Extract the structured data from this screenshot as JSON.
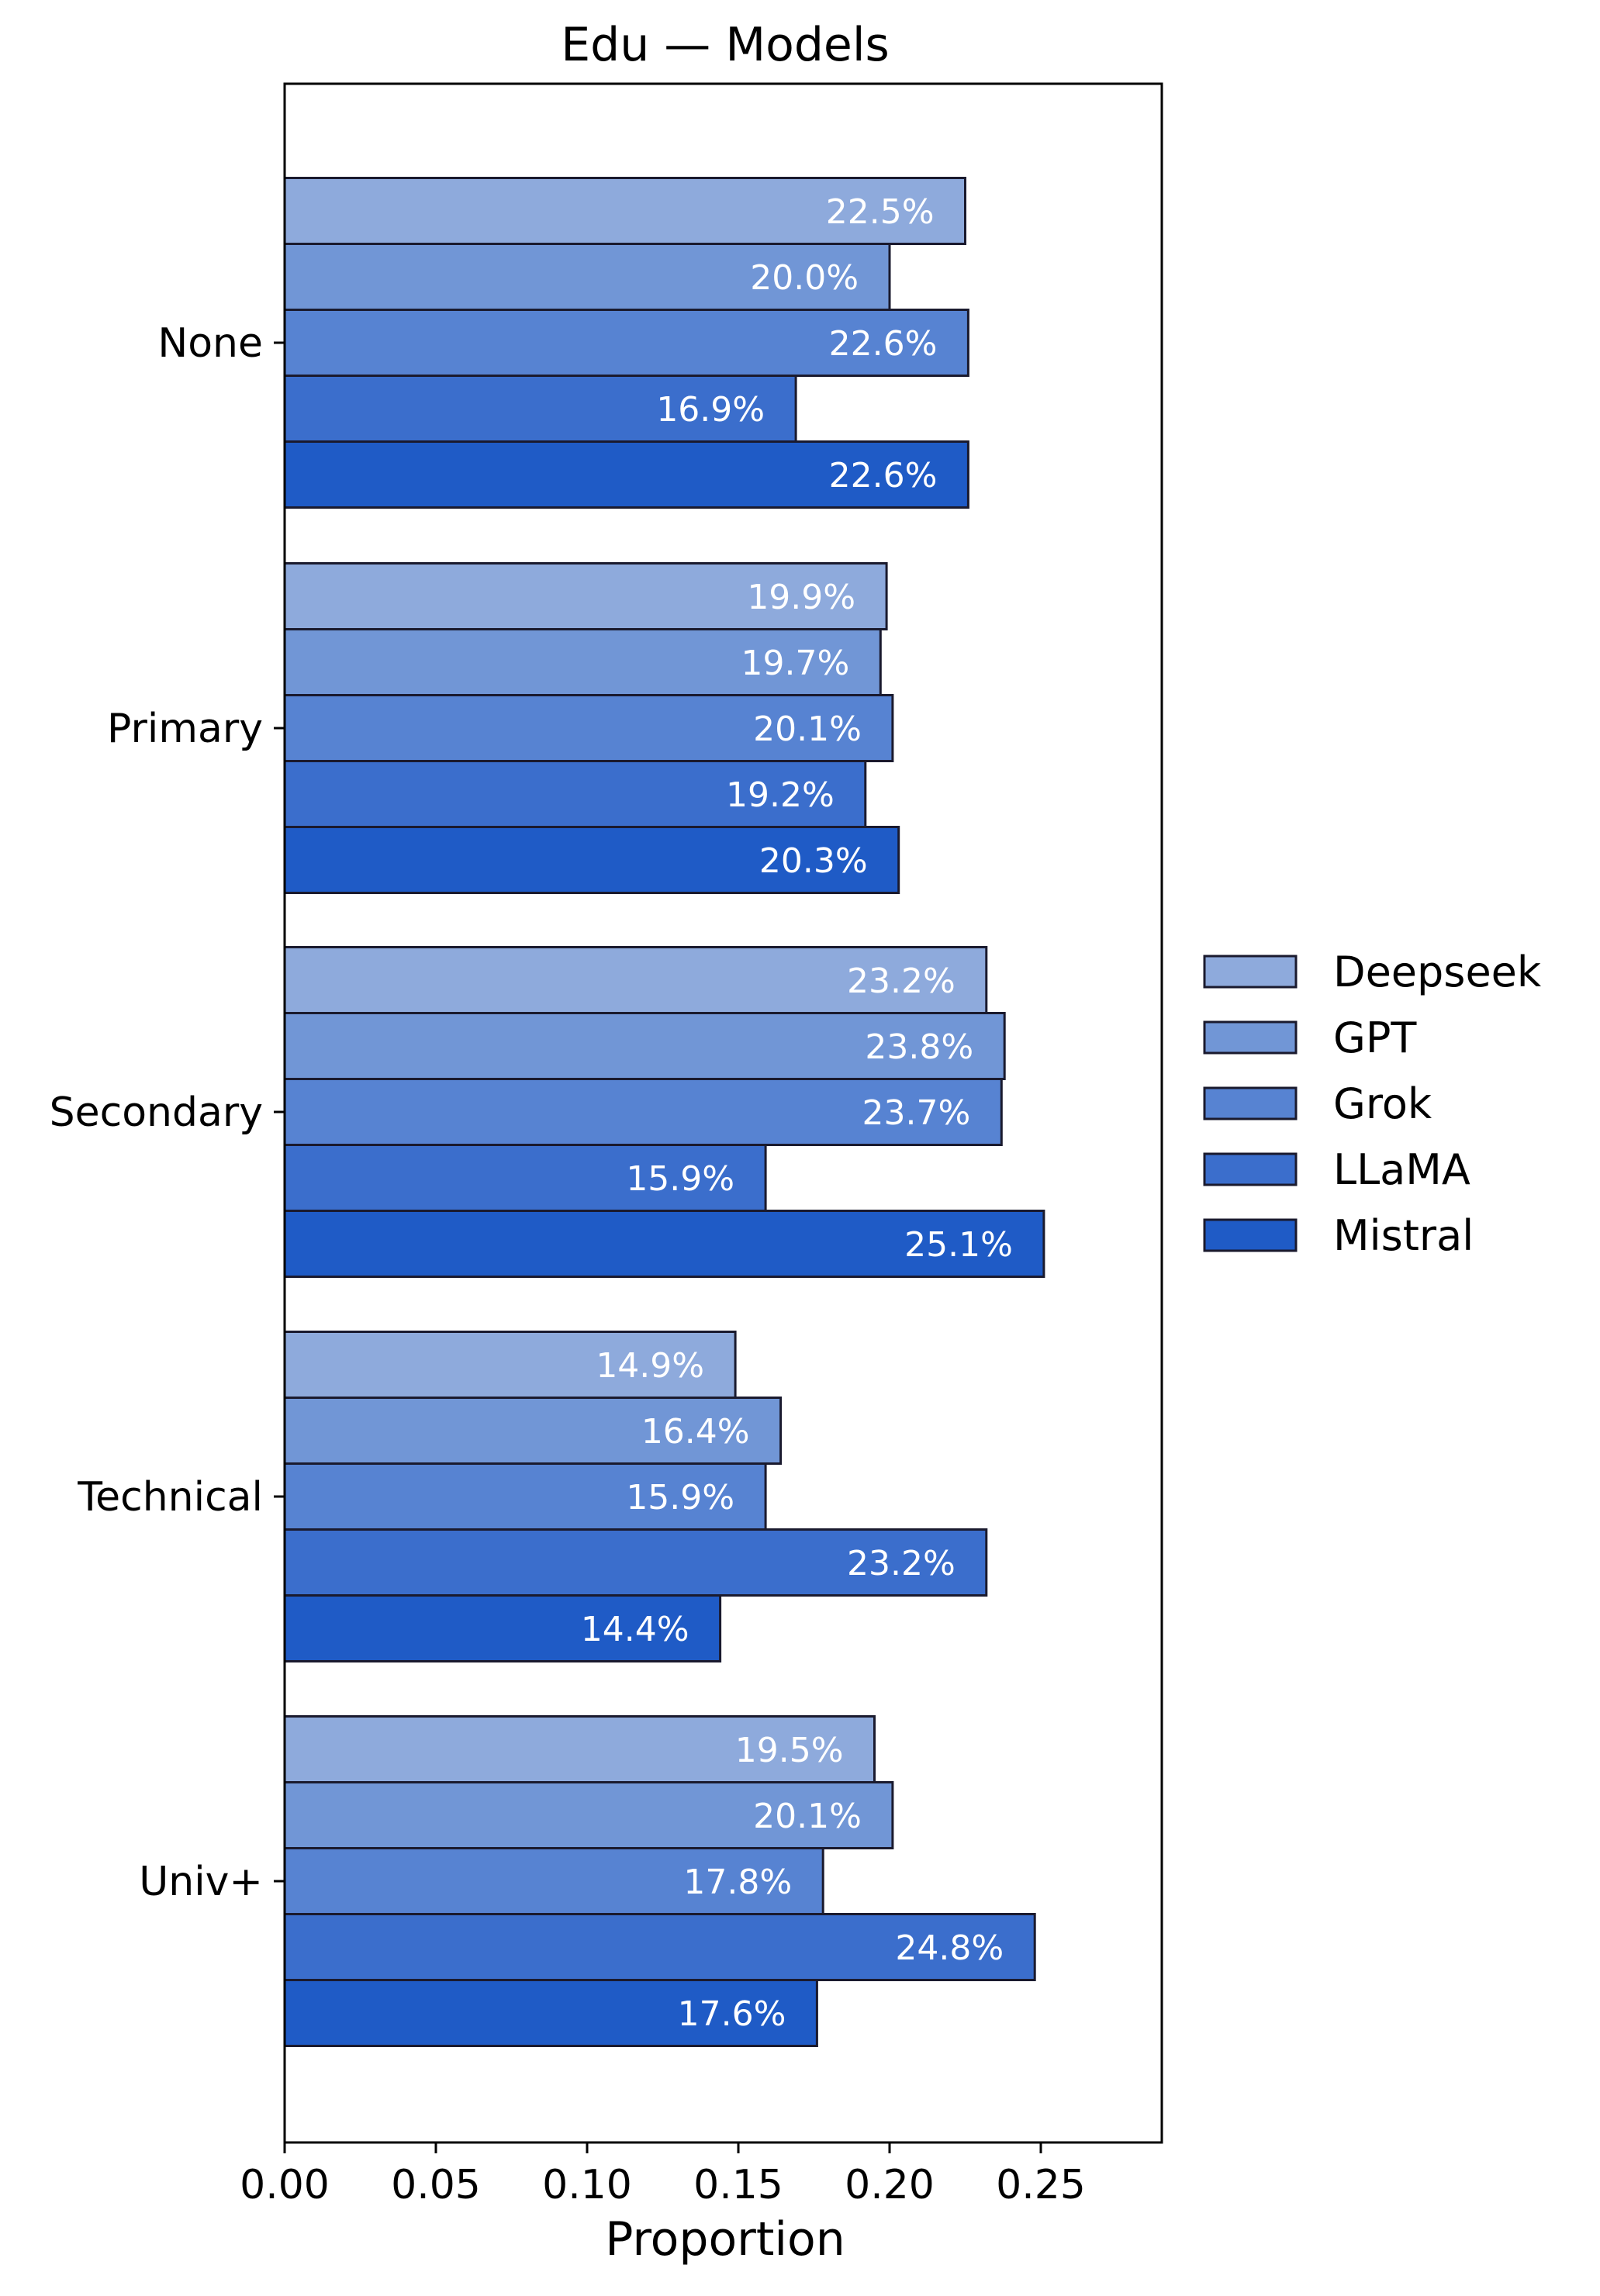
{
  "chart_data": {
    "type": "bar",
    "orientation": "horizontal",
    "title": "Edu — Models",
    "xlabel": "Proportion",
    "ylabel": "",
    "categories": [
      "None",
      "Primary",
      "Secondary",
      "Technical",
      "Univ+"
    ],
    "xlim": [
      0,
      0.29
    ],
    "xticks": [
      0.0,
      0.05,
      0.1,
      0.15,
      0.2,
      0.25
    ],
    "xtick_labels": [
      "0.00",
      "0.05",
      "0.10",
      "0.15",
      "0.20",
      "0.25"
    ],
    "grid": false,
    "legend_position": "right",
    "series": [
      {
        "name": "Deepseek",
        "color": "#8eaadc",
        "values": [
          0.225,
          0.199,
          0.232,
          0.149,
          0.195
        ],
        "labels": [
          "22.5%",
          "19.9%",
          "23.2%",
          "14.9%",
          "19.5%"
        ]
      },
      {
        "name": "GPT",
        "color": "#7196d6",
        "values": [
          0.2,
          0.197,
          0.238,
          0.164,
          0.201
        ],
        "labels": [
          "20.0%",
          "19.7%",
          "23.8%",
          "16.4%",
          "20.1%"
        ]
      },
      {
        "name": "Grok",
        "color": "#5783d2",
        "values": [
          0.226,
          0.201,
          0.237,
          0.159,
          0.178
        ],
        "labels": [
          "22.6%",
          "20.1%",
          "23.7%",
          "15.9%",
          "17.8%"
        ]
      },
      {
        "name": "LLaMA",
        "color": "#3b6ecc",
        "values": [
          0.169,
          0.192,
          0.159,
          0.232,
          0.248
        ],
        "labels": [
          "16.9%",
          "19.2%",
          "15.9%",
          "23.2%",
          "24.8%"
        ]
      },
      {
        "name": "Mistral",
        "color": "#1f5bc6",
        "values": [
          0.226,
          0.203,
          0.251,
          0.144,
          0.176
        ],
        "labels": [
          "22.6%",
          "20.3%",
          "25.1%",
          "14.4%",
          "17.6%"
        ]
      }
    ]
  }
}
